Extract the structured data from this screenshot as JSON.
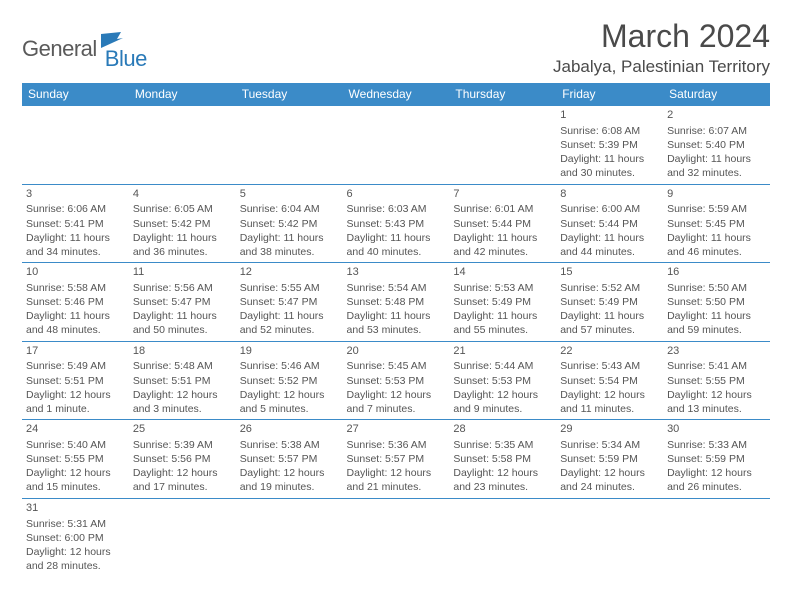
{
  "logo": {
    "general": "General",
    "blue": "Blue"
  },
  "title": "March 2024",
  "location": "Jabalya, Palestinian Territory",
  "colors": {
    "header_bg": "#3b8bc8",
    "header_text": "#ffffff",
    "border": "#3b8bc8",
    "text": "#555555",
    "logo_blue": "#2a7ab8"
  },
  "weekdays": [
    "Sunday",
    "Monday",
    "Tuesday",
    "Wednesday",
    "Thursday",
    "Friday",
    "Saturday"
  ],
  "weeks": [
    [
      null,
      null,
      null,
      null,
      null,
      {
        "d": "1",
        "sr": "Sunrise: 6:08 AM",
        "ss": "Sunset: 5:39 PM",
        "dl1": "Daylight: 11 hours",
        "dl2": "and 30 minutes."
      },
      {
        "d": "2",
        "sr": "Sunrise: 6:07 AM",
        "ss": "Sunset: 5:40 PM",
        "dl1": "Daylight: 11 hours",
        "dl2": "and 32 minutes."
      }
    ],
    [
      {
        "d": "3",
        "sr": "Sunrise: 6:06 AM",
        "ss": "Sunset: 5:41 PM",
        "dl1": "Daylight: 11 hours",
        "dl2": "and 34 minutes."
      },
      {
        "d": "4",
        "sr": "Sunrise: 6:05 AM",
        "ss": "Sunset: 5:42 PM",
        "dl1": "Daylight: 11 hours",
        "dl2": "and 36 minutes."
      },
      {
        "d": "5",
        "sr": "Sunrise: 6:04 AM",
        "ss": "Sunset: 5:42 PM",
        "dl1": "Daylight: 11 hours",
        "dl2": "and 38 minutes."
      },
      {
        "d": "6",
        "sr": "Sunrise: 6:03 AM",
        "ss": "Sunset: 5:43 PM",
        "dl1": "Daylight: 11 hours",
        "dl2": "and 40 minutes."
      },
      {
        "d": "7",
        "sr": "Sunrise: 6:01 AM",
        "ss": "Sunset: 5:44 PM",
        "dl1": "Daylight: 11 hours",
        "dl2": "and 42 minutes."
      },
      {
        "d": "8",
        "sr": "Sunrise: 6:00 AM",
        "ss": "Sunset: 5:44 PM",
        "dl1": "Daylight: 11 hours",
        "dl2": "and 44 minutes."
      },
      {
        "d": "9",
        "sr": "Sunrise: 5:59 AM",
        "ss": "Sunset: 5:45 PM",
        "dl1": "Daylight: 11 hours",
        "dl2": "and 46 minutes."
      }
    ],
    [
      {
        "d": "10",
        "sr": "Sunrise: 5:58 AM",
        "ss": "Sunset: 5:46 PM",
        "dl1": "Daylight: 11 hours",
        "dl2": "and 48 minutes."
      },
      {
        "d": "11",
        "sr": "Sunrise: 5:56 AM",
        "ss": "Sunset: 5:47 PM",
        "dl1": "Daylight: 11 hours",
        "dl2": "and 50 minutes."
      },
      {
        "d": "12",
        "sr": "Sunrise: 5:55 AM",
        "ss": "Sunset: 5:47 PM",
        "dl1": "Daylight: 11 hours",
        "dl2": "and 52 minutes."
      },
      {
        "d": "13",
        "sr": "Sunrise: 5:54 AM",
        "ss": "Sunset: 5:48 PM",
        "dl1": "Daylight: 11 hours",
        "dl2": "and 53 minutes."
      },
      {
        "d": "14",
        "sr": "Sunrise: 5:53 AM",
        "ss": "Sunset: 5:49 PM",
        "dl1": "Daylight: 11 hours",
        "dl2": "and 55 minutes."
      },
      {
        "d": "15",
        "sr": "Sunrise: 5:52 AM",
        "ss": "Sunset: 5:49 PM",
        "dl1": "Daylight: 11 hours",
        "dl2": "and 57 minutes."
      },
      {
        "d": "16",
        "sr": "Sunrise: 5:50 AM",
        "ss": "Sunset: 5:50 PM",
        "dl1": "Daylight: 11 hours",
        "dl2": "and 59 minutes."
      }
    ],
    [
      {
        "d": "17",
        "sr": "Sunrise: 5:49 AM",
        "ss": "Sunset: 5:51 PM",
        "dl1": "Daylight: 12 hours",
        "dl2": "and 1 minute."
      },
      {
        "d": "18",
        "sr": "Sunrise: 5:48 AM",
        "ss": "Sunset: 5:51 PM",
        "dl1": "Daylight: 12 hours",
        "dl2": "and 3 minutes."
      },
      {
        "d": "19",
        "sr": "Sunrise: 5:46 AM",
        "ss": "Sunset: 5:52 PM",
        "dl1": "Daylight: 12 hours",
        "dl2": "and 5 minutes."
      },
      {
        "d": "20",
        "sr": "Sunrise: 5:45 AM",
        "ss": "Sunset: 5:53 PM",
        "dl1": "Daylight: 12 hours",
        "dl2": "and 7 minutes."
      },
      {
        "d": "21",
        "sr": "Sunrise: 5:44 AM",
        "ss": "Sunset: 5:53 PM",
        "dl1": "Daylight: 12 hours",
        "dl2": "and 9 minutes."
      },
      {
        "d": "22",
        "sr": "Sunrise: 5:43 AM",
        "ss": "Sunset: 5:54 PM",
        "dl1": "Daylight: 12 hours",
        "dl2": "and 11 minutes."
      },
      {
        "d": "23",
        "sr": "Sunrise: 5:41 AM",
        "ss": "Sunset: 5:55 PM",
        "dl1": "Daylight: 12 hours",
        "dl2": "and 13 minutes."
      }
    ],
    [
      {
        "d": "24",
        "sr": "Sunrise: 5:40 AM",
        "ss": "Sunset: 5:55 PM",
        "dl1": "Daylight: 12 hours",
        "dl2": "and 15 minutes."
      },
      {
        "d": "25",
        "sr": "Sunrise: 5:39 AM",
        "ss": "Sunset: 5:56 PM",
        "dl1": "Daylight: 12 hours",
        "dl2": "and 17 minutes."
      },
      {
        "d": "26",
        "sr": "Sunrise: 5:38 AM",
        "ss": "Sunset: 5:57 PM",
        "dl1": "Daylight: 12 hours",
        "dl2": "and 19 minutes."
      },
      {
        "d": "27",
        "sr": "Sunrise: 5:36 AM",
        "ss": "Sunset: 5:57 PM",
        "dl1": "Daylight: 12 hours",
        "dl2": "and 21 minutes."
      },
      {
        "d": "28",
        "sr": "Sunrise: 5:35 AM",
        "ss": "Sunset: 5:58 PM",
        "dl1": "Daylight: 12 hours",
        "dl2": "and 23 minutes."
      },
      {
        "d": "29",
        "sr": "Sunrise: 5:34 AM",
        "ss": "Sunset: 5:59 PM",
        "dl1": "Daylight: 12 hours",
        "dl2": "and 24 minutes."
      },
      {
        "d": "30",
        "sr": "Sunrise: 5:33 AM",
        "ss": "Sunset: 5:59 PM",
        "dl1": "Daylight: 12 hours",
        "dl2": "and 26 minutes."
      }
    ],
    [
      {
        "d": "31",
        "sr": "Sunrise: 5:31 AM",
        "ss": "Sunset: 6:00 PM",
        "dl1": "Daylight: 12 hours",
        "dl2": "and 28 minutes."
      },
      null,
      null,
      null,
      null,
      null,
      null
    ]
  ]
}
